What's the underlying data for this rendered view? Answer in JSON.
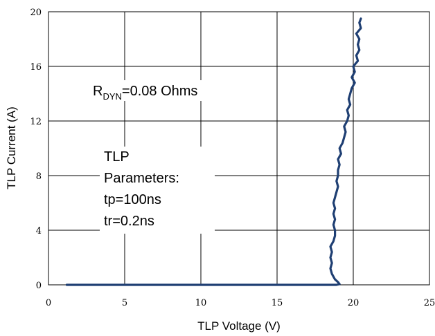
{
  "chart_data": {
    "type": "line",
    "xlabel": "TLP Voltage (V)",
    "ylabel": "TLP Current (A)",
    "xlim": [
      0,
      25
    ],
    "ylim": [
      0,
      20
    ],
    "x_ticks": [
      "0",
      "5",
      "10",
      "15",
      "20",
      "25"
    ],
    "y_ticks": [
      "0",
      "4",
      "8",
      "12",
      "16",
      "20"
    ],
    "grid": true,
    "series": [
      {
        "color": "#1f3f73",
        "points": [
          [
            1.2,
            0.0
          ],
          [
            18.9,
            0.0
          ],
          [
            19.1,
            0.05
          ],
          [
            19.0,
            0.2
          ],
          [
            18.8,
            0.4
          ],
          [
            18.6,
            0.8
          ],
          [
            18.5,
            1.2
          ],
          [
            18.6,
            1.6
          ],
          [
            18.5,
            2.0
          ],
          [
            18.6,
            2.4
          ],
          [
            18.5,
            2.8
          ],
          [
            18.7,
            3.2
          ],
          [
            18.8,
            3.6
          ],
          [
            18.8,
            4.0
          ],
          [
            18.7,
            4.4
          ],
          [
            18.8,
            4.8
          ],
          [
            18.7,
            5.2
          ],
          [
            18.8,
            5.6
          ],
          [
            18.7,
            6.0
          ],
          [
            18.8,
            6.4
          ],
          [
            18.9,
            6.8
          ],
          [
            19.0,
            7.2
          ],
          [
            18.9,
            7.6
          ],
          [
            19.0,
            8.0
          ],
          [
            19.0,
            8.4
          ],
          [
            19.1,
            8.8
          ],
          [
            19.0,
            9.2
          ],
          [
            19.2,
            9.6
          ],
          [
            19.1,
            10.0
          ],
          [
            19.3,
            10.4
          ],
          [
            19.4,
            10.8
          ],
          [
            19.5,
            11.2
          ],
          [
            19.4,
            11.6
          ],
          [
            19.6,
            12.0
          ],
          [
            19.7,
            12.4
          ],
          [
            19.6,
            12.8
          ],
          [
            19.8,
            13.2
          ],
          [
            19.7,
            13.6
          ],
          [
            19.8,
            14.0
          ],
          [
            19.9,
            14.4
          ],
          [
            20.1,
            14.8
          ],
          [
            19.9,
            15.2
          ],
          [
            20.1,
            15.6
          ],
          [
            20.0,
            16.0
          ],
          [
            20.3,
            16.4
          ],
          [
            20.2,
            16.8
          ],
          [
            20.4,
            17.2
          ],
          [
            20.3,
            17.6
          ],
          [
            20.4,
            18.0
          ],
          [
            20.2,
            18.4
          ],
          [
            20.5,
            18.8
          ],
          [
            20.4,
            19.2
          ],
          [
            20.5,
            19.5
          ]
        ]
      }
    ],
    "annotations": {
      "rdyn_main": "R",
      "rdyn_sub": "DYN",
      "rdyn_rest": "=0.08 Ohms",
      "params": [
        "TLP",
        "Parameters:",
        "tp=100ns",
        "tr=0.2ns"
      ]
    }
  }
}
